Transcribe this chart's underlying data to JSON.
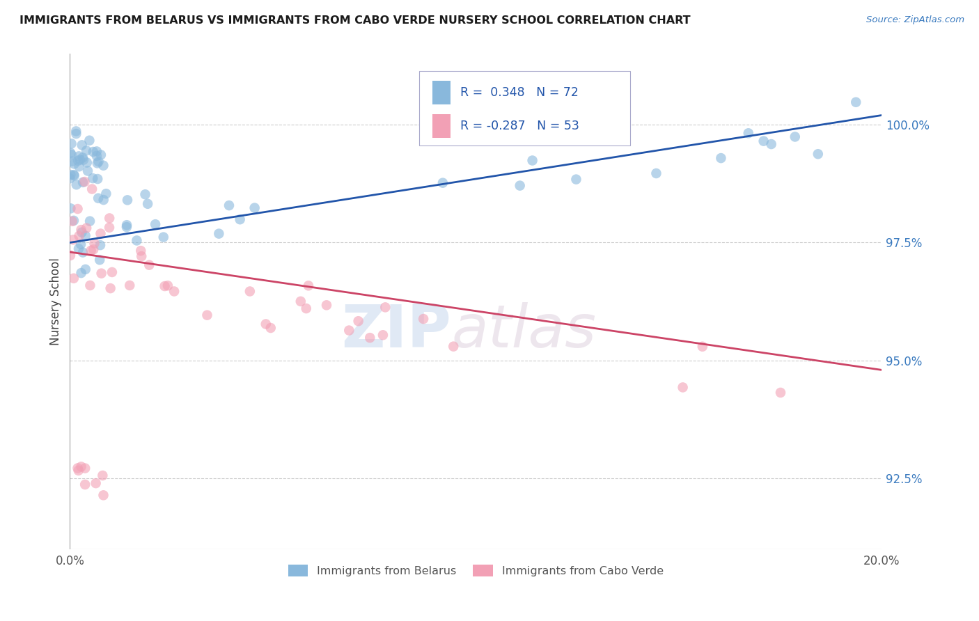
{
  "title": "IMMIGRANTS FROM BELARUS VS IMMIGRANTS FROM CABO VERDE NURSERY SCHOOL CORRELATION CHART",
  "source": "Source: ZipAtlas.com",
  "ylabel": "Nursery School",
  "ytick_labels": [
    "92.5%",
    "95.0%",
    "97.5%",
    "100.0%"
  ],
  "ytick_values": [
    92.5,
    95.0,
    97.5,
    100.0
  ],
  "xlim": [
    0.0,
    20.0
  ],
  "ylim": [
    91.0,
    101.5
  ],
  "legend_r1": "R =  0.348",
  "legend_n1": "N = 72",
  "legend_r2": "R = -0.287",
  "legend_n2": "N = 53",
  "legend_label1": "Immigrants from Belarus",
  "legend_label2": "Immigrants from Cabo Verde",
  "blue_color": "#89b8dc",
  "pink_color": "#f2a0b5",
  "line_blue": "#2255aa",
  "line_pink": "#cc4466",
  "watermark_zip": "ZIP",
  "watermark_atlas": "atlas",
  "R1": 0.348,
  "N1": 72,
  "R2": -0.287,
  "N2": 53,
  "bel_line_y0": 97.5,
  "bel_line_y1": 100.2,
  "cabo_line_y0": 97.3,
  "cabo_line_y1": 94.8
}
